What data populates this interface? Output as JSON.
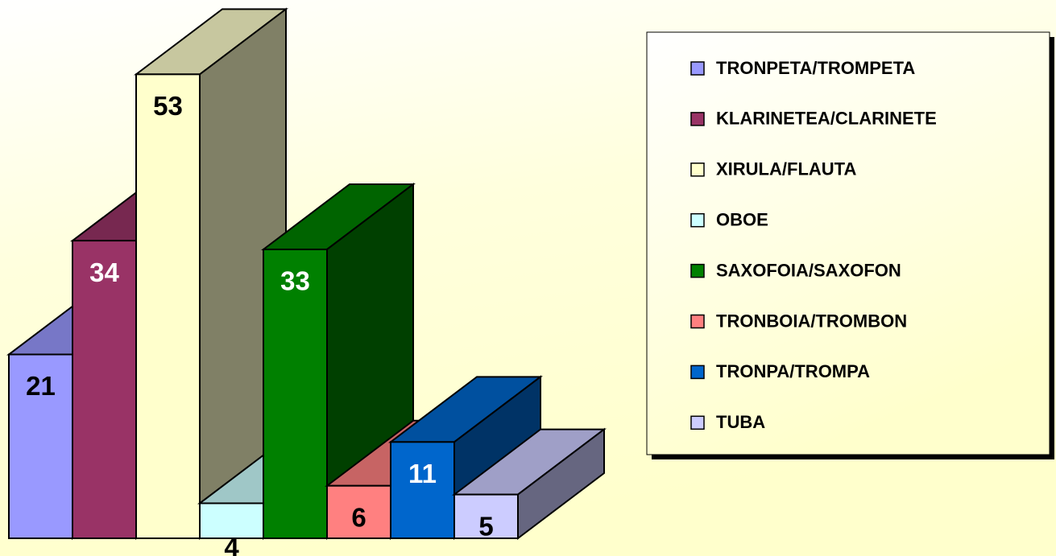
{
  "chart_data": {
    "type": "bar",
    "categories": [
      "TRONPETA/TROMPETA",
      "KLARINETEA/CLARINETE",
      "XIRULA/FLAUTA",
      "OBOE",
      "SAXOFOIA/SAXOFON",
      "TRONBOIA/TROMBON",
      "TRONPA/TROMPA",
      "TUBA"
    ],
    "values": [
      21,
      34,
      53,
      4,
      33,
      6,
      11,
      5
    ],
    "colors": [
      "#9999ff",
      "#993366",
      "#ffffcc",
      "#ccffff",
      "#008000",
      "#ff8080",
      "#0066cc",
      "#ccccff"
    ],
    "legend": "right"
  }
}
